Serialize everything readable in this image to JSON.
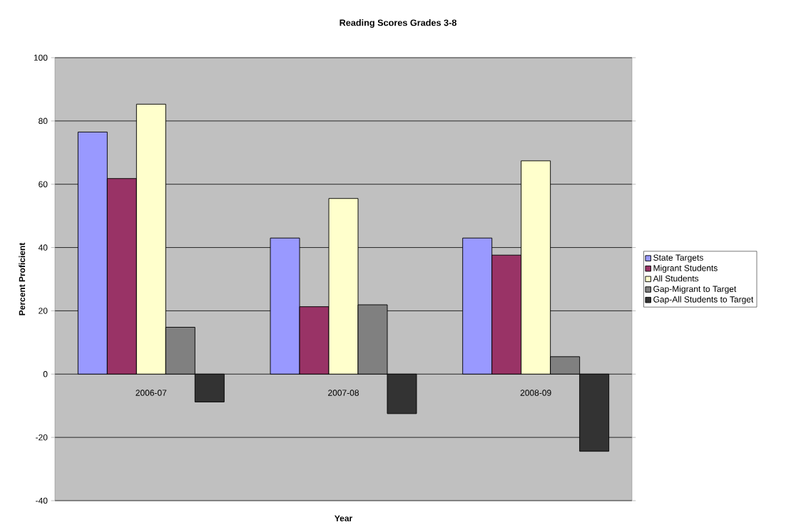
{
  "chart_data": {
    "type": "bar",
    "title": "Reading Scores Grades 3-8",
    "xlabel": "Year",
    "ylabel": "Percent Proficient",
    "categories": [
      "2006-07",
      "2007-08",
      "2008-09"
    ],
    "series": [
      {
        "name": "State Targets",
        "color": "#9999ff",
        "values": [
          76.5,
          43.0,
          43.0
        ]
      },
      {
        "name": "Migrant Students",
        "color": "#993366",
        "values": [
          61.8,
          21.3,
          37.6
        ]
      },
      {
        "name": "All Students",
        "color": "#ffffcc",
        "values": [
          85.3,
          55.5,
          67.4
        ]
      },
      {
        "name": "Gap-Migrant to Target",
        "color": "#808080",
        "values": [
          14.8,
          21.9,
          5.5
        ]
      },
      {
        "name": "Gap-All Students to Target",
        "color": "#333333",
        "values": [
          -8.8,
          -12.5,
          -24.4
        ]
      }
    ],
    "ylim": [
      -40,
      100
    ],
    "yticks": [
      -40,
      -20,
      0,
      20,
      40,
      60,
      80,
      100
    ],
    "grid": "y",
    "legend": "right"
  }
}
